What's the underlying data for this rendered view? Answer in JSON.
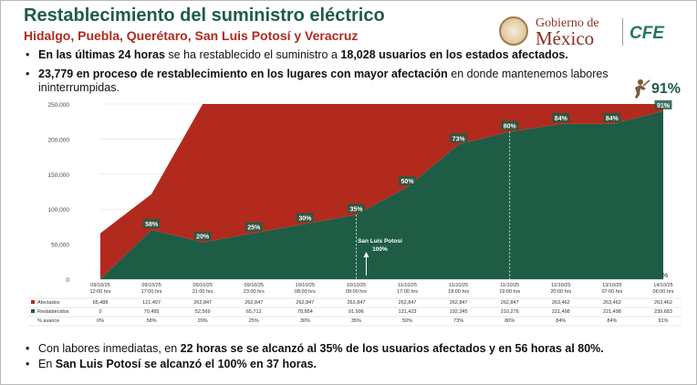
{
  "header": {
    "title": "Restablecimiento del suministro eléctrico",
    "subtitle": "Hidalgo, Puebla, Querétaro, San Luis Potosí y Veracruz",
    "gob_line1": "Gobierno de",
    "gob_line2": "México",
    "cfe": "CFE"
  },
  "bullets_top": [
    {
      "bold1": "En las últimas 24 horas",
      "text1": " se ha restablecido el suministro a ",
      "bold2": "18,028 usuarios en los estados afectados."
    },
    {
      "bold1": "23,779 en proceso de restablecimiento en los lugares con mayor afectación",
      "text1": " en donde mantenemos labores ininterrumpidas.",
      "bold2": ""
    }
  ],
  "badge": "91%",
  "bullets_bottom": [
    {
      "t1": "Con labores inmediatas, en ",
      "b1": "22 horas se se alcanzó al 35% de los usuarios afectados y en 56 horas al 80%.",
      "t2": ""
    },
    {
      "t1": "En ",
      "b1": "San Luis Potosí se alcanzó el 100% en 37 horas.",
      "t2": ""
    }
  ],
  "colors": {
    "afectados": "#b22a1e",
    "restablecidos": "#1f5c45",
    "title": "#1f5c45",
    "subtitle": "#b22a1e"
  },
  "chart_data": {
    "type": "area",
    "ylim": [
      0,
      250000
    ],
    "yticks": [
      "250,000",
      "200,000",
      "150,000",
      "100,000",
      "50,000",
      "0"
    ],
    "ytick_values": [
      250000,
      200000,
      150000,
      100000,
      50000,
      0
    ],
    "categories": [
      [
        "09/10/25",
        "12:00 hrs"
      ],
      [
        "09/10/25",
        "17:00 hrs"
      ],
      [
        "09/10/25",
        "21:00 hrs"
      ],
      [
        "09/10/25",
        "23:00 hrs"
      ],
      [
        "10/10/25",
        "08:00 hrs"
      ],
      [
        "10/10/25",
        "09:00 hrs"
      ],
      [
        "11/10/25",
        "17:00 hrs"
      ],
      [
        "11/10/25",
        "18:00 hrs"
      ],
      [
        "11/10/25",
        "19:00 hrs"
      ],
      [
        "12/10/25",
        "20:00 hrs"
      ],
      [
        "13/10/25",
        "07:00 hrs"
      ],
      [
        "14/10/25",
        "06:00 hrs"
      ]
    ],
    "series": [
      {
        "name": "Afectados",
        "values": [
          65488,
          121497,
          262847,
          262847,
          262847,
          262847,
          262847,
          262847,
          262847,
          263462,
          263462,
          263462
        ],
        "labels": [
          "65,488",
          "121,497",
          "262,847",
          "262,847",
          "262,847",
          "262,847",
          "262,847",
          "262,847",
          "262,847",
          "263,462",
          "263,462",
          "263,462"
        ]
      },
      {
        "name": "Restablecidos",
        "values": [
          0,
          70495,
          52569,
          65712,
          78854,
          91996,
          131423,
          192345,
          210276,
          221498,
          221498,
          239683
        ],
        "labels": [
          "0",
          "70,495",
          "52,569",
          "65,712",
          "78,854",
          "91,996",
          "131,423",
          "192,345",
          "210,276",
          "221,498",
          "221,498",
          "239,683"
        ]
      },
      {
        "name": "% avance",
        "values": [
          0,
          58,
          20,
          25,
          30,
          35,
          50,
          73,
          80,
          84,
          84,
          91
        ],
        "labels": [
          "0%",
          "58%",
          "20%",
          "25%",
          "30%",
          "35%",
          "50%",
          "73%",
          "80%",
          "84%",
          "84%",
          "91%"
        ]
      }
    ],
    "point_labels": [
      "",
      "58%",
      "20%",
      "25%",
      "30%",
      "35%",
      "50%",
      "73%",
      "80%",
      "84%",
      "84%",
      "91%"
    ],
    "annotation": {
      "line1": "San Luis Potosí",
      "line2": "100%"
    },
    "corner_label": "%",
    "grid": true
  }
}
